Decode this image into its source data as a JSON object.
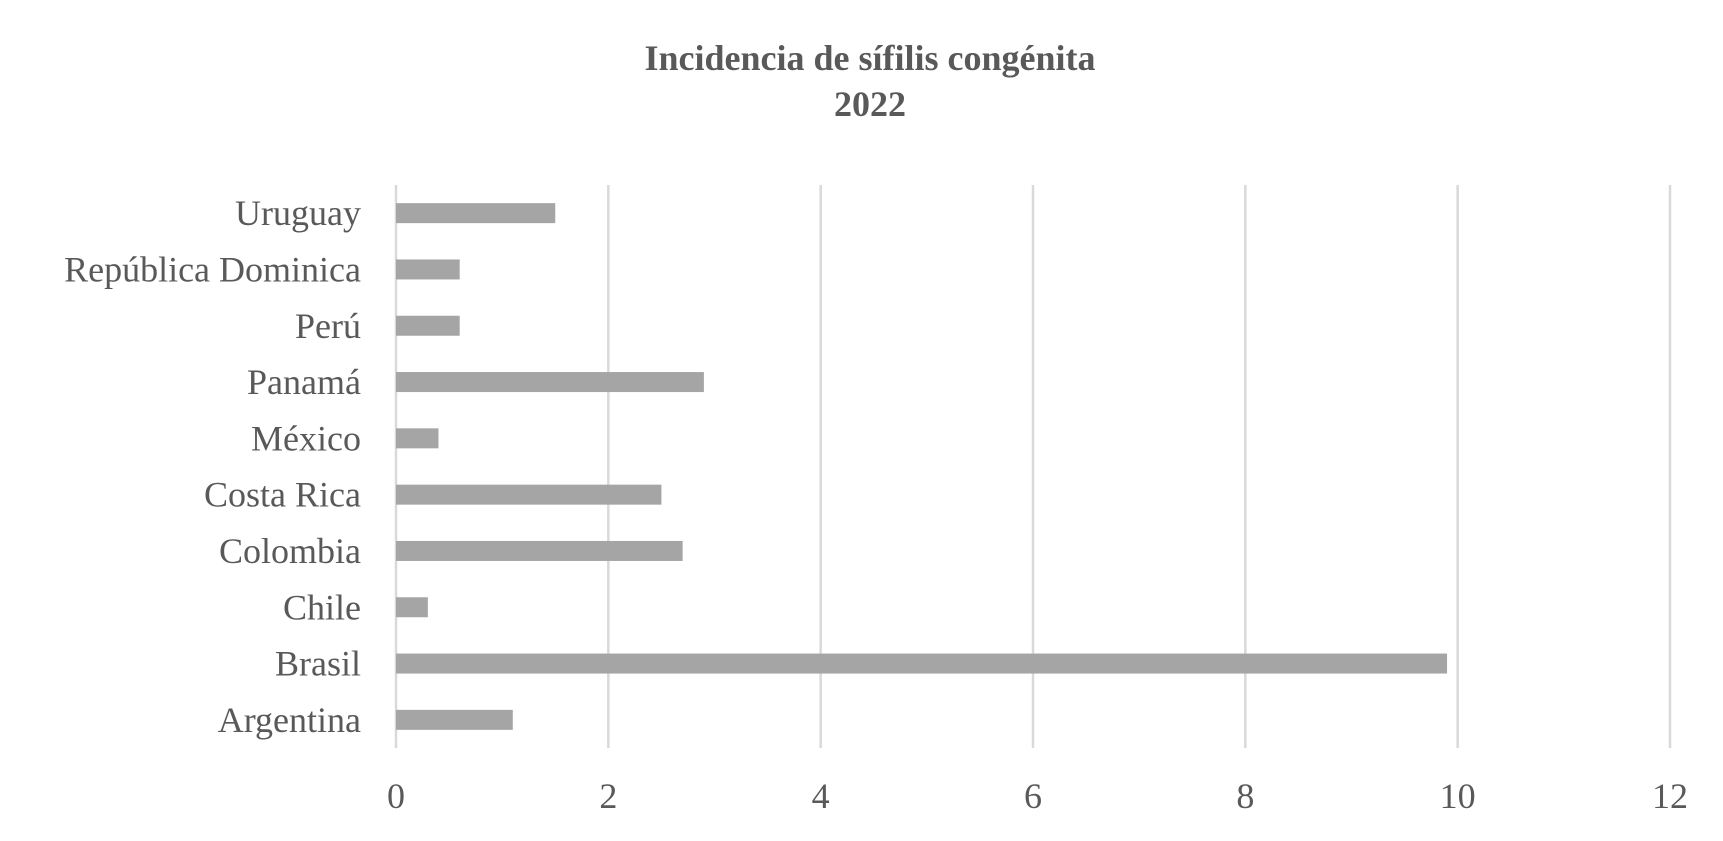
{
  "chart_data": {
    "type": "bar",
    "orientation": "horizontal",
    "title": "Incidencia de sífilis congénita",
    "subtitle": "2022",
    "categories": [
      "Uruguay",
      "República Dominica",
      "Perú",
      "Panamá",
      "México",
      "Costa Rica",
      "Colombia",
      "Chile",
      "Brasil",
      "Argentina"
    ],
    "values": [
      1.5,
      0.6,
      0.6,
      2.9,
      0.4,
      2.5,
      2.7,
      0.3,
      9.9,
      1.1
    ],
    "xlim": [
      0,
      12
    ],
    "xticks": [
      "0",
      "2",
      "4",
      "6",
      "8",
      "10",
      "12"
    ],
    "grid": true,
    "legend": "none",
    "bar_color": "#a5a5a5",
    "text_color": "#595959",
    "grid_color": "#d9d9d9"
  }
}
